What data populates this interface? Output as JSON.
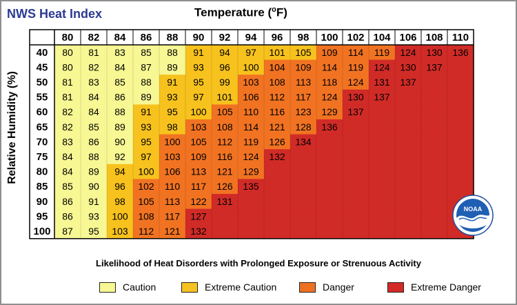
{
  "title": "NWS Heat Index",
  "x_axis_label": "Temperature (",
  "x_axis_label_unit": "o",
  "x_axis_label_end": "F)",
  "y_axis_label": "Relative Humidity (%)",
  "caption": "Likelihood of Heat Disorders with Prolonged Exposure or Strenuous Activity",
  "legend": [
    {
      "label": "Caution",
      "color": "#f7f793"
    },
    {
      "label": "Extreme Caution",
      "color": "#f5c222"
    },
    {
      "label": "Danger",
      "color": "#ee7122"
    },
    {
      "label": "Extreme Danger",
      "color": "#d42a26"
    }
  ],
  "colors": {
    "caution": "#f7f793",
    "extreme_caution": "#f7c21d",
    "danger": "#f17322",
    "extreme_danger": "#d12b27",
    "header_bg": "#ffffff",
    "title": "#2b3a93"
  },
  "logo": {
    "name": "NOAA",
    "label": "NOAA"
  },
  "chart_data": {
    "type": "table",
    "title": "NWS Heat Index",
    "xlabel": "Temperature (°F)",
    "ylabel": "Relative Humidity (%)",
    "temperatures": [
      80,
      82,
      84,
      86,
      88,
      90,
      92,
      94,
      96,
      98,
      100,
      102,
      104,
      106,
      108,
      110
    ],
    "humidities": [
      40,
      45,
      50,
      55,
      60,
      65,
      70,
      75,
      80,
      85,
      90,
      95,
      100
    ],
    "heat_index": [
      [
        80,
        81,
        83,
        85,
        88,
        91,
        94,
        97,
        101,
        105,
        109,
        114,
        119,
        124,
        130,
        136
      ],
      [
        80,
        82,
        84,
        87,
        89,
        93,
        96,
        100,
        104,
        109,
        114,
        119,
        124,
        130,
        137
      ],
      [
        81,
        83,
        85,
        88,
        91,
        95,
        99,
        103,
        108,
        113,
        118,
        124,
        131,
        137
      ],
      [
        81,
        84,
        86,
        89,
        93,
        97,
        101,
        106,
        112,
        117,
        124,
        130,
        137
      ],
      [
        82,
        84,
        88,
        91,
        95,
        100,
        105,
        110,
        116,
        123,
        129,
        137
      ],
      [
        82,
        85,
        89,
        93,
        98,
        103,
        108,
        114,
        121,
        128,
        136
      ],
      [
        83,
        86,
        90,
        95,
        100,
        105,
        112,
        119,
        126,
        134
      ],
      [
        84,
        88,
        92,
        97,
        103,
        109,
        116,
        124,
        132
      ],
      [
        84,
        89,
        94,
        100,
        106,
        113,
        121,
        129
      ],
      [
        85,
        90,
        96,
        102,
        110,
        117,
        126,
        135
      ],
      [
        86,
        91,
        98,
        105,
        113,
        122,
        131
      ],
      [
        86,
        93,
        100,
        108,
        117,
        127
      ],
      [
        87,
        95,
        103,
        112,
        121,
        132
      ]
    ],
    "categories": [
      "CCCCCEEEEEDDDXXX",
      "CCCCCEEEDDDDXXXX",
      "CCCCEEEDDDDDXXXX",
      "CCCCEEEDDDDXXXXX",
      "CCCEEEDDDDDXXXXX",
      "CCCEEDDDDDXXXXXX",
      "CCCEDDDDDXXXXXXX",
      "CCCEDDDDXXXXXXXX",
      "CCEEDDDDXXXXXXXX",
      "CCEDDDDXXXXXXXXX",
      "CCEDDDXXXXXXXXXX",
      "CCEDDXXXXXXXXXXX",
      "CCEDDXXXXXXXXXXX"
    ],
    "legend": [
      "Caution",
      "Extreme Caution",
      "Danger",
      "Extreme Danger"
    ]
  }
}
